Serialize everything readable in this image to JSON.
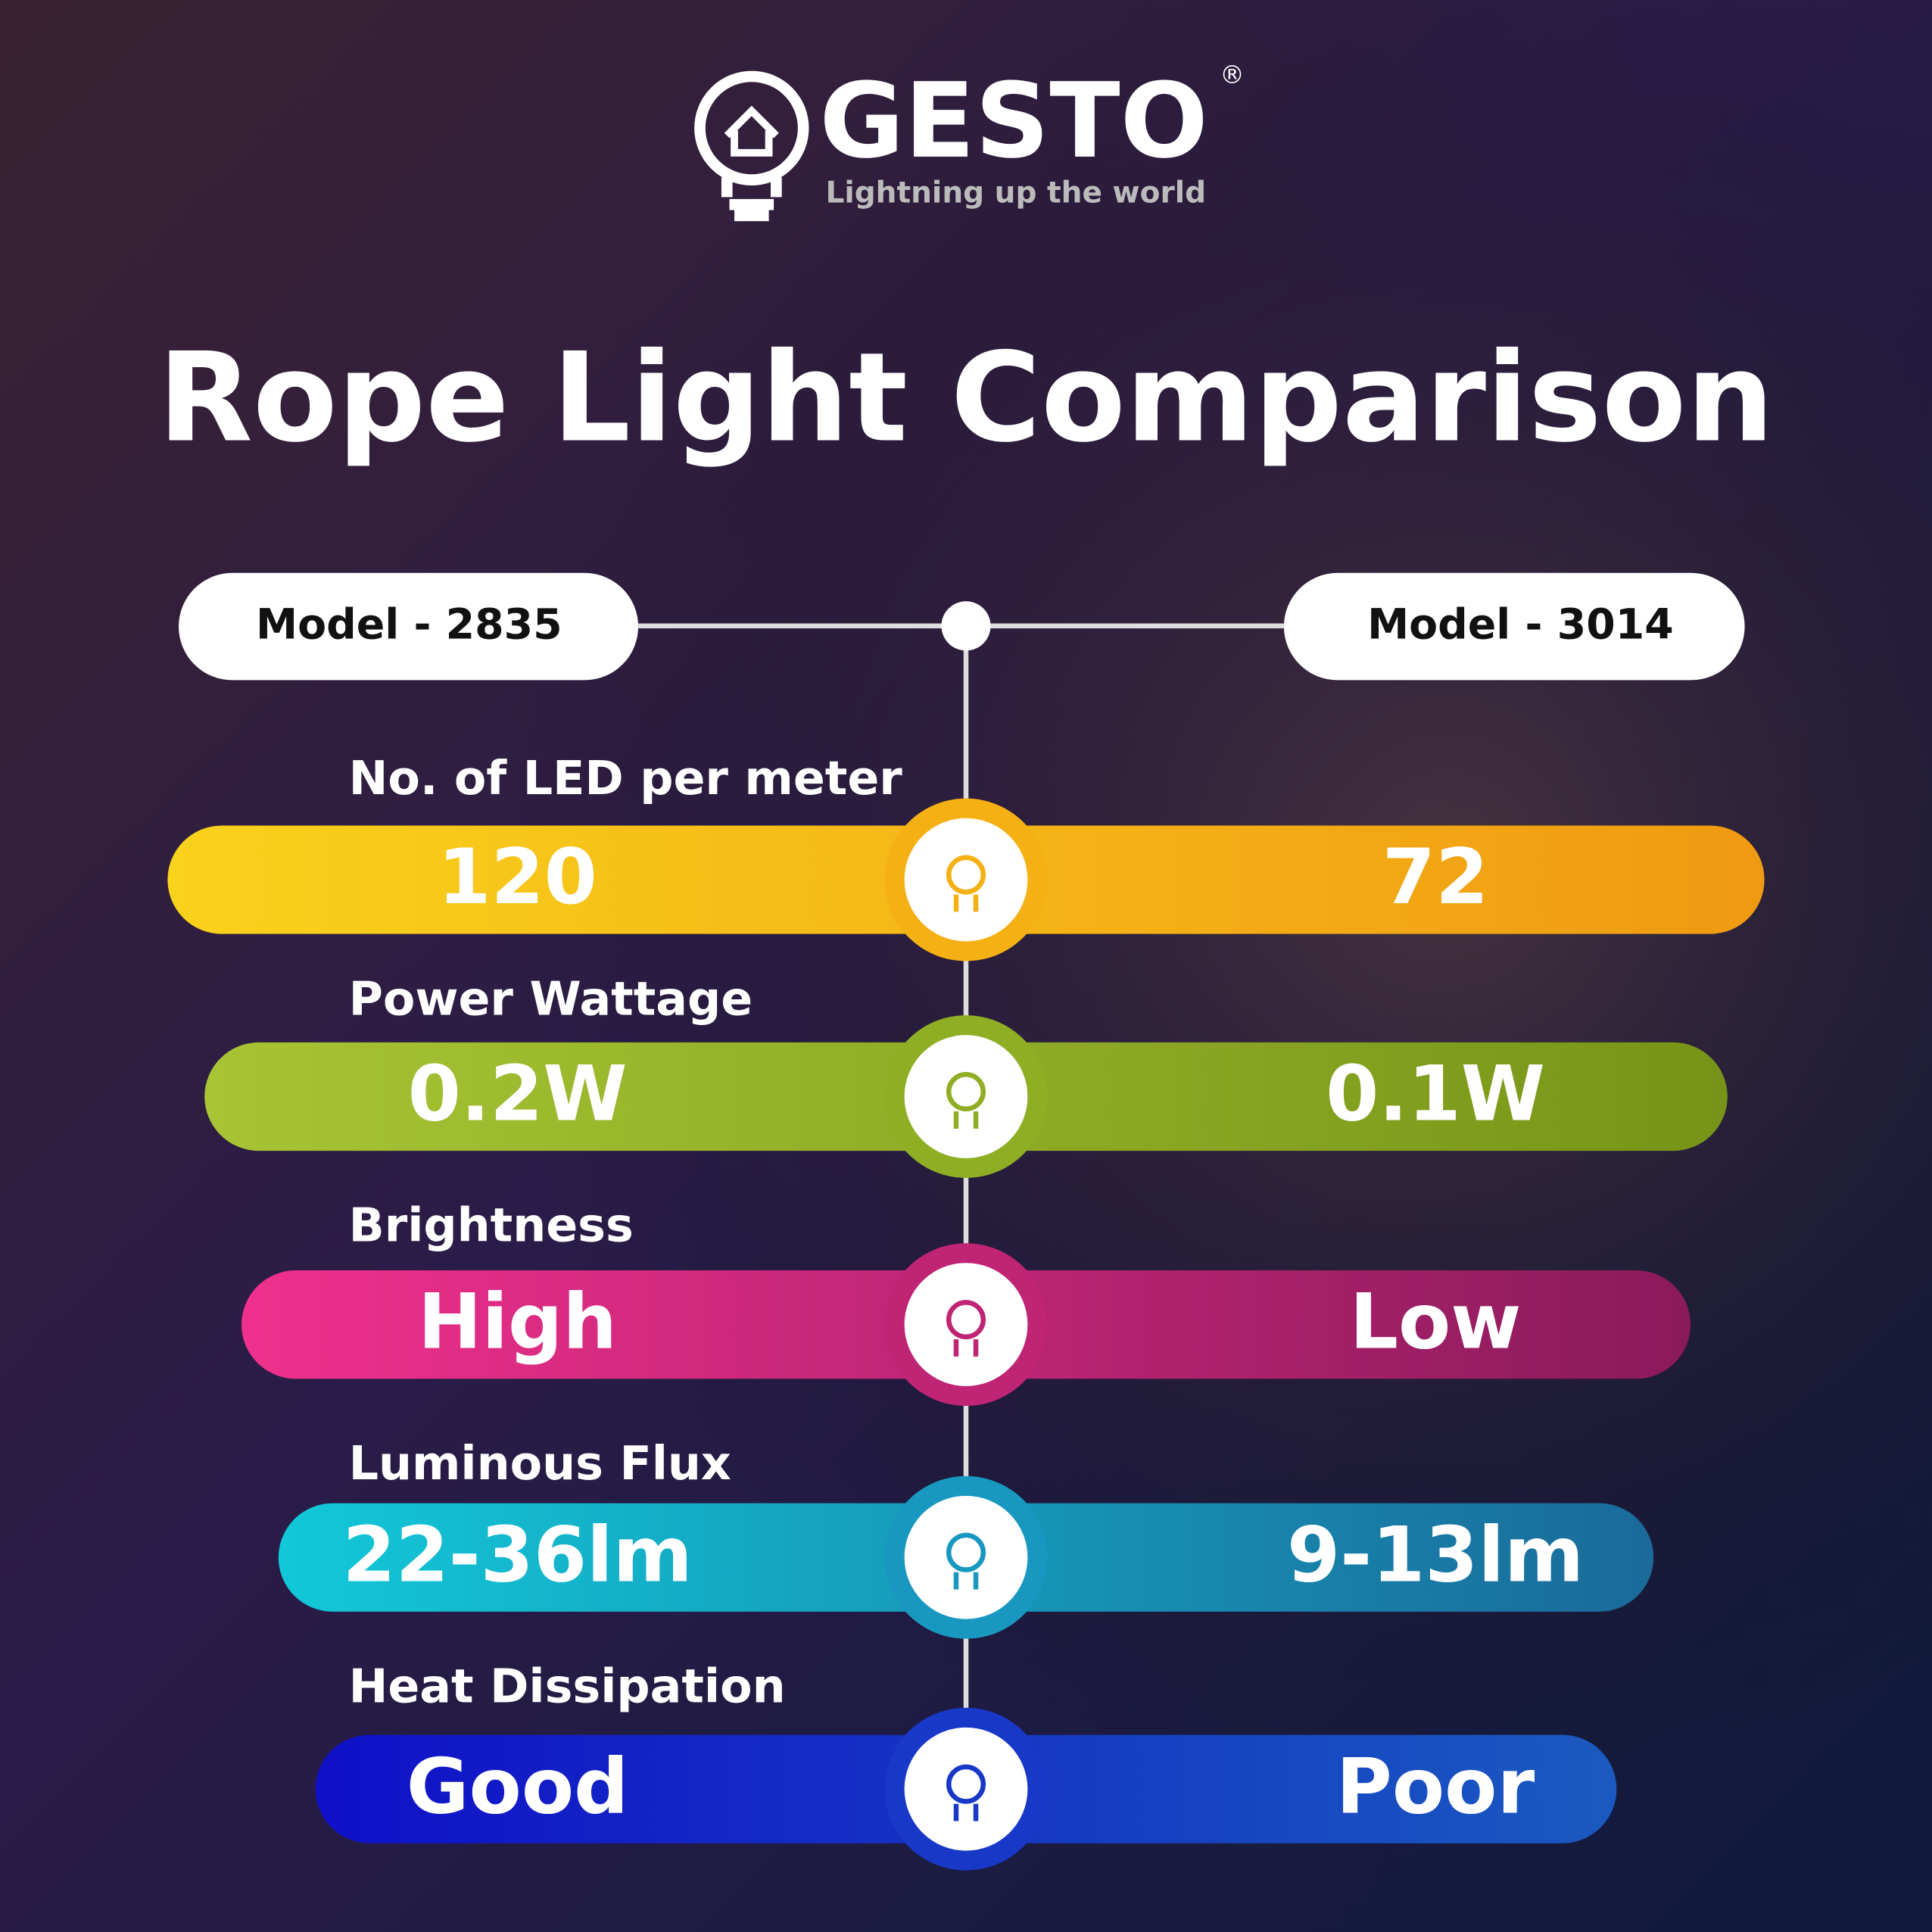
{
  "brand": {
    "name": "GESTO",
    "registered": "®",
    "tagline": "Lightning up the world"
  },
  "title": "Rope Light Comparison",
  "models": [
    "Model - 2835",
    "Model - 3014"
  ],
  "rows": [
    {
      "label": "No. of LED per meter",
      "left": "120",
      "right": "72"
    },
    {
      "label": "Power Wattage",
      "left": "0.2W",
      "right": "0.1W"
    },
    {
      "label": "Brightness",
      "left": "High",
      "right": "Low"
    },
    {
      "label": "Luminous Flux",
      "left": "22-36lm",
      "right": "9-13lm"
    },
    {
      "label": "Heat Dissipation",
      "left": "Good",
      "right": "Poor"
    }
  ]
}
